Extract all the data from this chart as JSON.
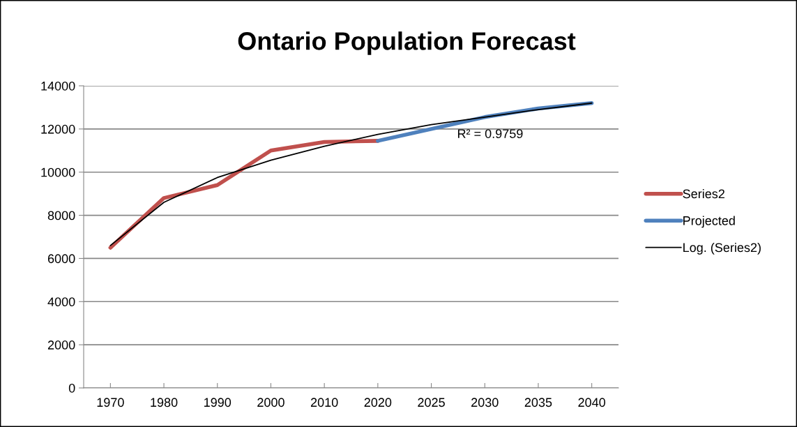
{
  "chart_data": {
    "type": "line",
    "title": "Ontario Population Forecast",
    "categories": [
      "1970",
      "1980",
      "1990",
      "2000",
      "2010",
      "2020",
      "2025",
      "2030",
      "2035",
      "2040"
    ],
    "series": [
      {
        "name": "Series2",
        "color": "#c0504d",
        "values": [
          6500,
          8800,
          9400,
          11000,
          11400,
          11450,
          null,
          null,
          null,
          null
        ]
      },
      {
        "name": "Projected",
        "color": "#4f81bd",
        "values": [
          null,
          null,
          null,
          null,
          null,
          11450,
          12000,
          12550,
          12950,
          13200
        ]
      },
      {
        "name": "Log. (Series2)",
        "color": "#000000",
        "values": [
          6600,
          8600,
          9750,
          10550,
          11200,
          11750,
          12200,
          12550,
          12900,
          13200
        ]
      }
    ],
    "ylim": [
      0,
      14000
    ],
    "yticks": [
      0,
      2000,
      4000,
      6000,
      8000,
      10000,
      12000,
      14000
    ],
    "annotations": [
      "R² = 0.9759"
    ],
    "grid": "y",
    "legend": "right",
    "marker": "none",
    "line_style": "solid"
  }
}
